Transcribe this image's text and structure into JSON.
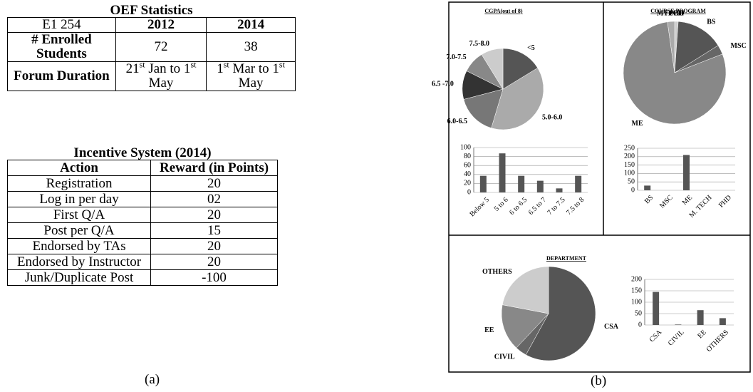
{
  "tables": [
    {
      "title": "OEF Statistics",
      "rows": [
        [
          "E1 254",
          "2012",
          "2014"
        ],
        [
          "# Enrolled Students",
          "72",
          "38"
        ],
        [
          "Forum Duration",
          [
            {
              "text": "21"
            },
            {
              "text": "st",
              "sup": true
            },
            {
              "text": " Jan to 1"
            },
            {
              "text": "st",
              "sup": true
            },
            {
              "text": " May"
            }
          ],
          [
            {
              "text": "1"
            },
            {
              "text": "st",
              "sup": true
            },
            {
              "text": " Mar to 1"
            },
            {
              "text": "st",
              "sup": true
            },
            {
              "text": " May"
            }
          ]
        ]
      ]
    },
    {
      "title": "Incentive System (2014)",
      "rows": [
        [
          "Action",
          "Reward (in Points)"
        ],
        [
          "Registration",
          "20"
        ],
        [
          "Log in per day",
          "02"
        ],
        [
          "First Q/A",
          "20"
        ],
        [
          "Post per Q/A",
          "15"
        ],
        [
          "Endorsed by TAs",
          "20"
        ],
        [
          "Endorsed by Instructor",
          "20"
        ],
        [
          "Junk/Duplicate Post",
          "-100"
        ]
      ]
    }
  ],
  "captions": [
    "(a)",
    "(b)"
  ],
  "chart_data": [
    {
      "type": "pie",
      "title": "CGPA(out of 8)",
      "categories": [
        "<5",
        "5.0-6.0",
        "6.0-6.5",
        "6.5 -7.0",
        "7.0-7.5",
        "7.5-8.0"
      ],
      "values": [
        37,
        87,
        37,
        26,
        20,
        20
      ],
      "colors": [
        "#555555",
        "#aaaaaa",
        "#777777",
        "#333333",
        "#888888",
        "#cccccc"
      ]
    },
    {
      "type": "bar",
      "categories": [
        "Below 5",
        "5 to 6",
        "6 to 6.5",
        "6.5 to 7",
        "7 to 7.5",
        "7.5 to 8"
      ],
      "values": [
        37,
        87,
        37,
        26,
        9,
        37
      ],
      "color": "#555555",
      "ylim": [
        0,
        100
      ],
      "yticks": [
        0,
        20,
        40,
        60,
        80,
        100
      ],
      "grid": true
    },
    {
      "type": "pie",
      "title": "COURSE PROGRAM",
      "categories": [
        "PHD",
        "BS",
        "MSC",
        "ME",
        "MTECH"
      ],
      "values": [
        3,
        40,
        8,
        210,
        6
      ],
      "colors": [
        "#cccccc",
        "#555555",
        "#666666",
        "#888888",
        "#aaaaaa"
      ]
    },
    {
      "type": "bar",
      "categories": [
        "BS",
        "MSC",
        "ME",
        "M. TECH",
        "PHD"
      ],
      "values": [
        28,
        0,
        210,
        0,
        0
      ],
      "color": "#555555",
      "ylim": [
        0,
        250
      ],
      "yticks": [
        0,
        50,
        100,
        150,
        200,
        250
      ],
      "grid": true
    },
    {
      "type": "pie",
      "title": "DEPARTMENT",
      "categories": [
        "CSA",
        "CIVIL",
        "EE",
        "OTHERS"
      ],
      "values": [
        145,
        10,
        40,
        55
      ],
      "colors": [
        "#555555",
        "#666666",
        "#888888",
        "#cccccc"
      ]
    },
    {
      "type": "bar",
      "categories": [
        "CSA",
        "CIVIL",
        "EE",
        "OTHERS"
      ],
      "values": [
        145,
        2,
        65,
        30
      ],
      "color": "#555555",
      "ylim": [
        0,
        200
      ],
      "yticks": [
        0,
        50,
        100,
        150,
        200
      ],
      "grid": true
    }
  ]
}
